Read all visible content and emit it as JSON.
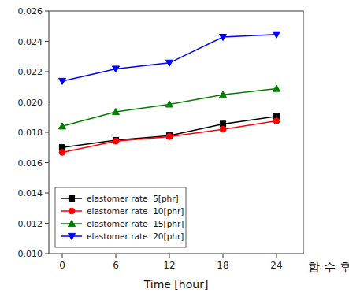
{
  "chart_data": {
    "type": "line",
    "xlabel": "Time [hour]",
    "x": [
      0,
      6,
      12,
      18,
      24
    ],
    "xlim": [
      -1.5,
      27
    ],
    "xticks": [
      0,
      6,
      12,
      18,
      24
    ],
    "ylim": [
      0.01,
      0.026
    ],
    "yticks": [
      {
        "value": 0.01,
        "label": "0.010"
      },
      0.012,
      0.014,
      0.016,
      0.018,
      {
        "value": 0.02,
        "label": "0.020"
      },
      0.022,
      0.024,
      0.026
    ],
    "series": [
      {
        "name": "elastomer rate  5[phr]",
        "color": "black",
        "marker": "square",
        "values": [
          0.017,
          0.01748,
          0.01778,
          0.01855,
          0.01905
        ]
      },
      {
        "name": "elastomer rate  10[phr]",
        "color": "red",
        "marker": "circle",
        "values": [
          0.01668,
          0.01742,
          0.01772,
          0.0182,
          0.01875
        ]
      },
      {
        "name": "elastomer rate  15[phr]",
        "color": "green",
        "marker": "triangle-up",
        "values": [
          0.0184,
          0.01935,
          0.01985,
          0.02048,
          0.02088
        ]
      },
      {
        "name": "elastomer rate  20[phr]",
        "color": "blue",
        "marker": "triangle-down",
        "values": [
          0.02138,
          0.02218,
          0.02258,
          0.02428,
          0.02445
        ]
      }
    ],
    "legend": "lower left",
    "grid": false,
    "annotations": [
      {
        "text": "함 수 후"
      }
    ],
    "color": "#ffffff"
  }
}
